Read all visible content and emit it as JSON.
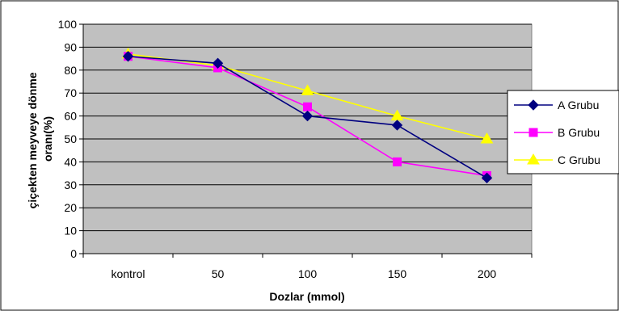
{
  "chart_data": {
    "type": "line",
    "categories": [
      "kontrol",
      "50",
      "100",
      "150",
      "200"
    ],
    "series": [
      {
        "name": "A Grubu",
        "values": [
          86,
          83,
          60,
          56,
          33
        ],
        "color": "#000080",
        "marker": "diamond"
      },
      {
        "name": "B Grubu",
        "values": [
          86,
          81,
          64,
          40,
          34
        ],
        "color": "#FF00FF",
        "marker": "square"
      },
      {
        "name": "C Grubu",
        "values": [
          87,
          82,
          71,
          60,
          50
        ],
        "color": "#FFFF00",
        "marker": "triangle"
      }
    ],
    "title": "",
    "xlabel": "Dozlar (mmol)",
    "ylabel": "çiçekten meyveye dönme oranı(%)",
    "ylim": [
      0,
      100
    ],
    "yticks": [
      "0",
      "10",
      "20",
      "30",
      "40",
      "50",
      "60",
      "70",
      "80",
      "90",
      "100"
    ],
    "grid": true,
    "legend": "right"
  },
  "colors": {
    "plot_background": "#C0C0C0",
    "grid": "#000000"
  }
}
